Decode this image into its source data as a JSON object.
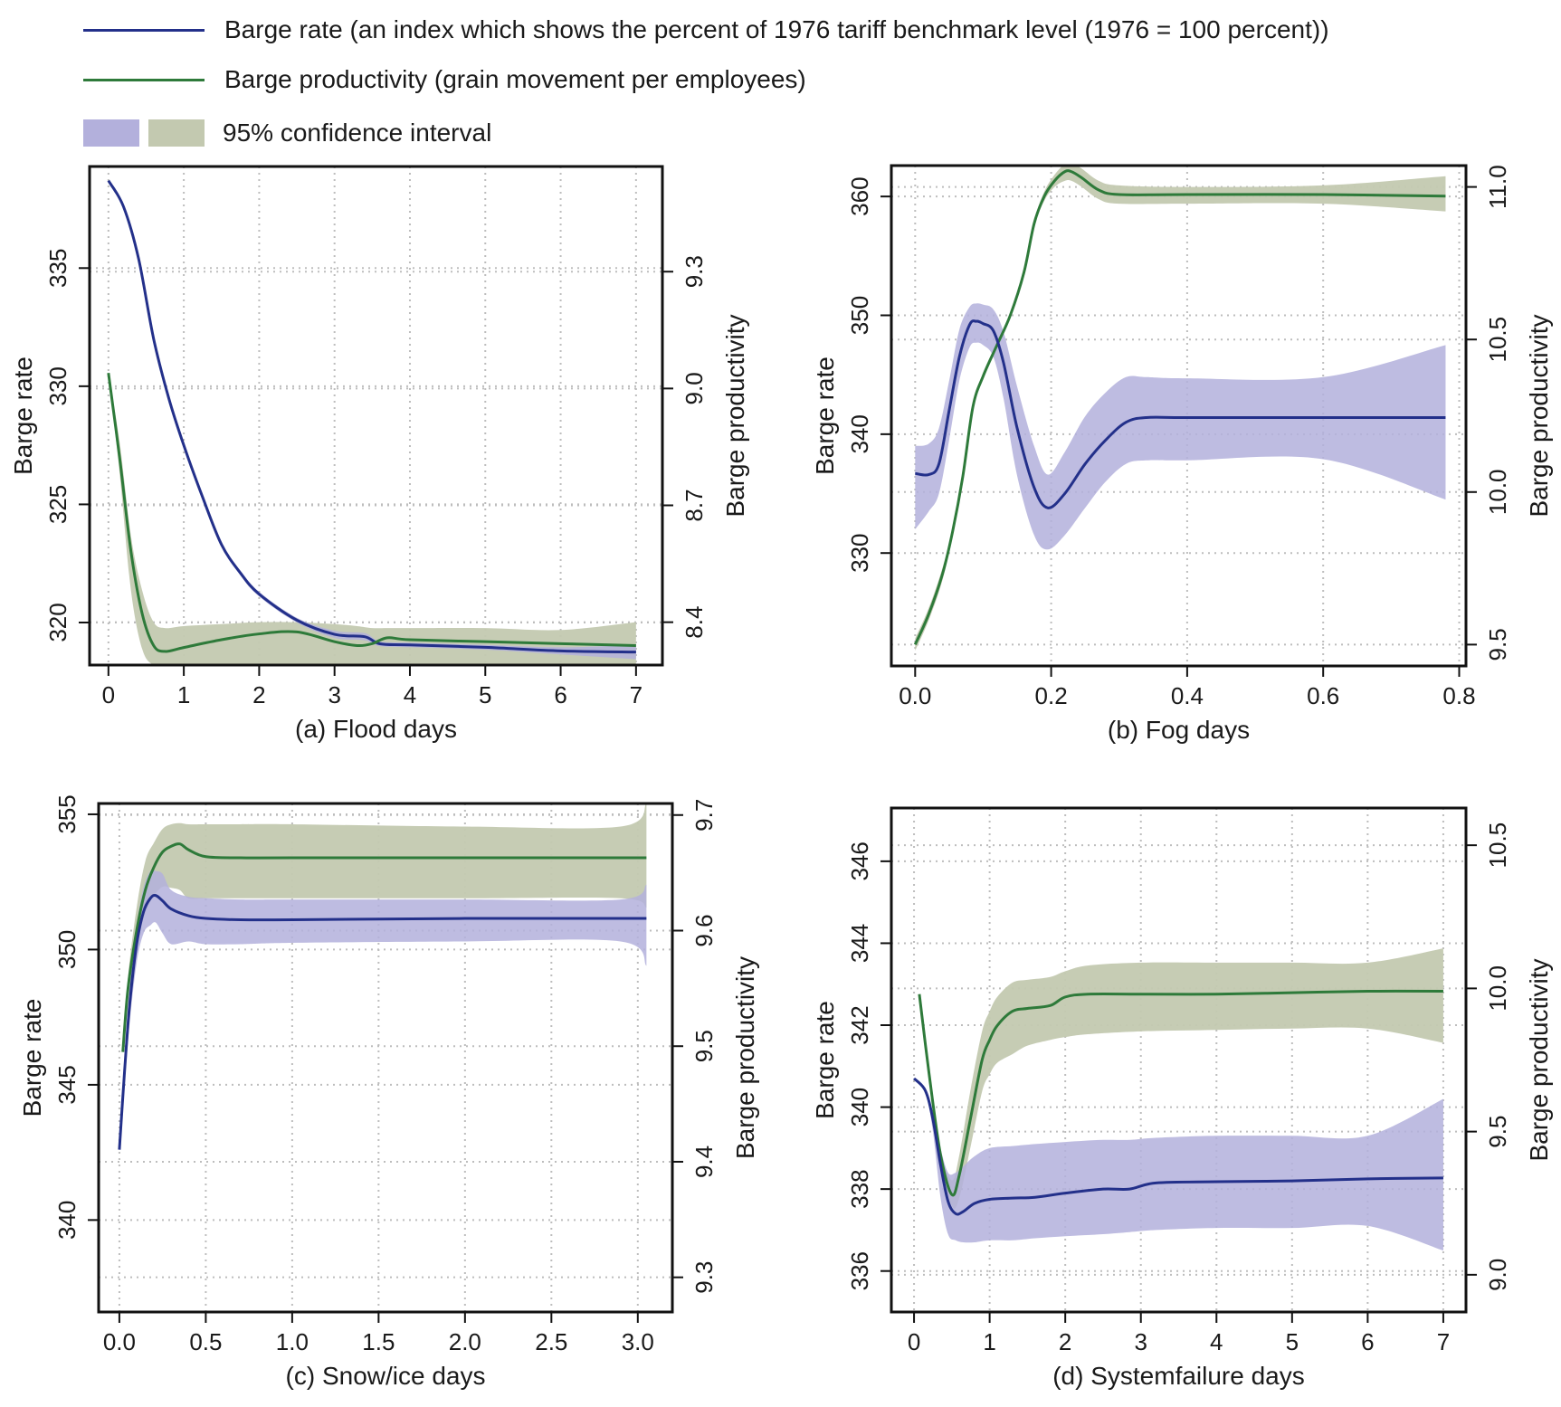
{
  "legend": {
    "barge_rate": {
      "label": "Barge rate (an index which shows the percent of 1976 tariff benchmark level (1976 = 100 percent))",
      "color": "#23308a"
    },
    "barge_productivity": {
      "label": "Barge productivity (grain movement per employees)",
      "color": "#2e7a3a"
    },
    "ci": {
      "label": "95% confidence interval",
      "rate_color": "#b3b0dc",
      "prod_color": "#c3c9b0"
    }
  },
  "chart_data": [
    {
      "id": "a",
      "type": "line",
      "title": "",
      "xlabel": "(a) Flood days",
      "ylabel_left": "Barge rate",
      "ylabel_right": "Barge productivity",
      "xlim": [
        -0.25,
        7.35
      ],
      "xticks": [
        0,
        1,
        2,
        3,
        4,
        5,
        6,
        7
      ],
      "xtick_labels": [
        "0",
        "1",
        "2",
        "3",
        "4",
        "5",
        "6",
        "7"
      ],
      "ylim_left": [
        318.2,
        339.3
      ],
      "yticks_left": [
        320,
        325,
        330,
        335
      ],
      "ytick_labels_left": [
        "320",
        "325",
        "330",
        "335"
      ],
      "ylim_right": [
        8.29,
        9.57
      ],
      "yticks_right": [
        8.4,
        8.7,
        9.0,
        9.3
      ],
      "ytick_labels_right": [
        "8.4",
        "8.7",
        "9.0",
        "9.3"
      ],
      "grid": true,
      "series": [
        {
          "name": "Barge rate",
          "axis": "left",
          "x": [
            0,
            0.2,
            0.4,
            0.6,
            0.8,
            1.0,
            1.25,
            1.5,
            1.75,
            2.0,
            2.5,
            3.0,
            3.4,
            3.6,
            4,
            5,
            6,
            7
          ],
          "y": [
            338.7,
            337.6,
            335.4,
            332.0,
            329.5,
            327.5,
            325.3,
            323.3,
            322.1,
            321.2,
            320.1,
            319.5,
            319.4,
            319.1,
            319.05,
            318.95,
            318.8,
            318.75
          ],
          "lower": [
            338.7,
            337.6,
            335.4,
            332.0,
            329.5,
            327.5,
            325.3,
            323.3,
            322.0,
            321.1,
            320.0,
            319.35,
            319.25,
            319.0,
            318.95,
            318.85,
            318.65,
            318.45
          ],
          "upper": [
            338.7,
            337.6,
            335.4,
            332.0,
            329.5,
            327.5,
            325.3,
            323.3,
            322.2,
            321.3,
            320.2,
            319.65,
            319.55,
            319.2,
            319.15,
            319.05,
            318.95,
            319.05
          ]
        },
        {
          "name": "Barge productivity",
          "axis": "right",
          "x": [
            0,
            0.15,
            0.3,
            0.45,
            0.6,
            0.75,
            1.0,
            1.5,
            2.0,
            2.5,
            3.0,
            3.3,
            3.5,
            3.7,
            4,
            5,
            6,
            7
          ],
          "y": [
            9.04,
            8.82,
            8.58,
            8.42,
            8.34,
            8.325,
            8.335,
            8.355,
            8.37,
            8.375,
            8.35,
            8.34,
            8.345,
            8.36,
            8.355,
            8.35,
            8.345,
            8.34
          ],
          "lower": [
            9.04,
            8.78,
            8.48,
            8.33,
            8.29,
            8.29,
            8.29,
            8.29,
            8.29,
            8.29,
            8.29,
            8.29,
            8.29,
            8.29,
            8.29,
            8.29,
            8.29,
            8.29
          ],
          "upper": [
            9.04,
            8.86,
            8.62,
            8.48,
            8.4,
            8.385,
            8.39,
            8.395,
            8.4,
            8.4,
            8.395,
            8.39,
            8.385,
            8.385,
            8.385,
            8.385,
            8.38,
            8.4
          ]
        }
      ]
    },
    {
      "id": "b",
      "type": "line",
      "title": "",
      "xlabel": "(b) Fog days",
      "ylabel_left": "Barge rate",
      "ylabel_right": "Barge productivity",
      "xlim": [
        -0.035,
        0.81
      ],
      "xticks": [
        0.0,
        0.2,
        0.4,
        0.6,
        0.8
      ],
      "xtick_labels": [
        "0.0",
        "0.2",
        "0.4",
        "0.6",
        "0.8"
      ],
      "ylim_left": [
        320.5,
        362.6
      ],
      "yticks_left": [
        330,
        340,
        350,
        360
      ],
      "ytick_labels_left": [
        "330",
        "340",
        "350",
        "360"
      ],
      "ylim_right": [
        9.43,
        11.07
      ],
      "yticks_right": [
        9.5,
        10.0,
        10.5,
        11.0
      ],
      "ytick_labels_right": [
        "9.5",
        "10.0",
        "10.5",
        "11.0"
      ],
      "grid": true,
      "series": [
        {
          "name": "Barge rate",
          "axis": "left",
          "x": [
            0,
            0.02,
            0.035,
            0.05,
            0.065,
            0.08,
            0.09,
            0.1,
            0.115,
            0.13,
            0.15,
            0.175,
            0.195,
            0.22,
            0.25,
            0.28,
            0.31,
            0.34,
            0.4,
            0.6,
            0.78
          ],
          "y": [
            336.7,
            336.6,
            337.5,
            342.0,
            346.5,
            349.2,
            349.5,
            349.3,
            348.7,
            346.0,
            340.5,
            335.5,
            333.8,
            335.0,
            337.5,
            339.5,
            341.0,
            341.4,
            341.4,
            341.4,
            341.4
          ],
          "lower": [
            332.0,
            333.5,
            335.0,
            339.5,
            344.5,
            347.3,
            347.7,
            347.5,
            346.5,
            343.0,
            336.5,
            331.5,
            330.3,
            331.5,
            333.8,
            336.0,
            337.5,
            337.8,
            337.8,
            337.9,
            334.5
          ],
          "upper": [
            339.0,
            339.2,
            340.5,
            344.5,
            348.8,
            350.7,
            351.0,
            350.9,
            350.5,
            348.6,
            344.0,
            339.0,
            336.6,
            338.5,
            341.5,
            343.5,
            344.8,
            344.8,
            344.7,
            344.8,
            347.5
          ]
        },
        {
          "name": "Barge productivity",
          "axis": "right",
          "x": [
            0,
            0.02,
            0.04,
            0.055,
            0.07,
            0.085,
            0.1,
            0.12,
            0.14,
            0.16,
            0.175,
            0.19,
            0.205,
            0.22,
            0.23,
            0.245,
            0.27,
            0.3,
            0.4,
            0.6,
            0.78
          ],
          "y": [
            9.5,
            9.6,
            9.73,
            9.87,
            10.05,
            10.28,
            10.38,
            10.48,
            10.58,
            10.72,
            10.88,
            10.97,
            11.02,
            11.05,
            11.05,
            11.03,
            10.99,
            10.975,
            10.975,
            10.975,
            10.97
          ],
          "lower": [
            9.48,
            9.58,
            9.71,
            9.86,
            10.04,
            10.27,
            10.37,
            10.47,
            10.57,
            10.71,
            10.87,
            10.955,
            11.0,
            11.02,
            11.02,
            11.0,
            10.96,
            10.945,
            10.945,
            10.945,
            10.92
          ],
          "upper": [
            9.52,
            9.62,
            9.75,
            9.88,
            10.06,
            10.29,
            10.39,
            10.49,
            10.59,
            10.73,
            10.89,
            10.985,
            11.04,
            11.075,
            11.08,
            11.06,
            11.02,
            11.005,
            11.0,
            11.005,
            11.035
          ]
        }
      ]
    },
    {
      "id": "c",
      "type": "line",
      "title": "",
      "xlabel": "(c) Snow/ice days",
      "ylabel_left": "Barge rate",
      "ylabel_right": "Barge productivity",
      "xlim": [
        -0.12,
        3.2
      ],
      "xticks": [
        0.0,
        0.5,
        1.0,
        1.5,
        2.0,
        2.5,
        3.0
      ],
      "xtick_labels": [
        "0.0",
        "0.5",
        "1.0",
        "1.5",
        "2.0",
        "2.5",
        "3.0"
      ],
      "ylim_left": [
        336.6,
        355.4
      ],
      "yticks_left": [
        340,
        345,
        350,
        355
      ],
      "ytick_labels_left": [
        "340",
        "345",
        "350",
        "355"
      ],
      "ylim_right": [
        9.27,
        9.71
      ],
      "yticks_right": [
        9.3,
        9.4,
        9.5,
        9.6,
        9.7
      ],
      "ytick_labels_right": [
        "9.3",
        "9.4",
        "9.5",
        "9.6",
        "9.7"
      ],
      "grid": true,
      "series": [
        {
          "name": "Barge rate",
          "axis": "left",
          "x": [
            0,
            0.03,
            0.06,
            0.1,
            0.14,
            0.18,
            0.21,
            0.25,
            0.3,
            0.4,
            0.5,
            0.7,
            1.0,
            2.0,
            2.9,
            3.05
          ],
          "y": [
            342.6,
            345.5,
            348.0,
            350.2,
            351.4,
            351.9,
            352.0,
            351.8,
            351.5,
            351.25,
            351.15,
            351.1,
            351.1,
            351.15,
            351.15,
            351.15
          ],
          "lower": [
            342.6,
            345.0,
            347.3,
            349.5,
            350.6,
            350.9,
            351.0,
            350.6,
            350.2,
            350.3,
            350.2,
            350.2,
            350.25,
            350.3,
            350.3,
            349.4
          ],
          "upper": [
            342.6,
            346.0,
            348.7,
            350.9,
            352.3,
            352.9,
            352.9,
            352.8,
            352.2,
            351.95,
            351.9,
            351.85,
            351.85,
            351.85,
            351.85,
            352.4
          ]
        },
        {
          "name": "Barge productivity",
          "axis": "right",
          "x": [
            0.02,
            0.05,
            0.1,
            0.15,
            0.2,
            0.25,
            0.3,
            0.35,
            0.4,
            0.5,
            0.7,
            1.0,
            2.0,
            2.9,
            3.05
          ],
          "y": [
            9.495,
            9.55,
            9.6,
            9.635,
            9.655,
            9.668,
            9.673,
            9.675,
            9.67,
            9.664,
            9.663,
            9.663,
            9.663,
            9.663,
            9.663
          ],
          "lower": [
            9.495,
            9.54,
            9.585,
            9.615,
            9.63,
            9.638,
            9.637,
            9.635,
            9.628,
            9.628,
            9.628,
            9.628,
            9.628,
            9.628,
            9.62
          ],
          "upper": [
            9.495,
            9.56,
            9.62,
            9.66,
            9.676,
            9.688,
            9.692,
            9.693,
            9.692,
            9.692,
            9.692,
            9.692,
            9.69,
            9.69,
            9.71
          ]
        }
      ]
    },
    {
      "id": "d",
      "type": "line",
      "title": "",
      "xlabel": "(d) Systemfailure days",
      "ylabel_left": "Barge rate",
      "ylabel_right": "Barge productivity",
      "xlim": [
        -0.3,
        7.3
      ],
      "xticks": [
        0,
        1,
        2,
        3,
        4,
        5,
        6,
        7
      ],
      "xtick_labels": [
        "0",
        "1",
        "2",
        "3",
        "4",
        "5",
        "6",
        "7"
      ],
      "ylim_left": [
        335.0,
        347.3
      ],
      "yticks_left": [
        336,
        338,
        340,
        342,
        344,
        346
      ],
      "ytick_labels_left": [
        "336",
        "338",
        "340",
        "342",
        "344",
        "346"
      ],
      "ylim_right": [
        8.87,
        10.63
      ],
      "yticks_right": [
        9.0,
        9.5,
        10.0,
        10.5
      ],
      "ytick_labels_right": [
        "9.0",
        "9.5",
        "10.0",
        "10.5"
      ],
      "grid": true,
      "series": [
        {
          "name": "Barge rate",
          "axis": "left",
          "x": [
            0,
            0.15,
            0.25,
            0.35,
            0.45,
            0.55,
            0.65,
            0.8,
            1.0,
            1.3,
            1.6,
            2.0,
            2.5,
            2.85,
            3.2,
            4,
            5,
            6,
            7
          ],
          "y": [
            340.7,
            340.4,
            339.7,
            338.6,
            337.7,
            337.4,
            337.45,
            337.65,
            337.75,
            337.78,
            337.8,
            337.9,
            338.0,
            338.0,
            338.15,
            338.18,
            338.2,
            338.25,
            338.27
          ],
          "lower": [
            340.7,
            340.4,
            339.4,
            337.8,
            336.9,
            336.75,
            336.7,
            336.7,
            336.75,
            336.75,
            336.8,
            336.85,
            336.9,
            336.95,
            337.0,
            337.05,
            337.05,
            337.1,
            336.5
          ],
          "upper": [
            340.7,
            340.4,
            339.9,
            339.0,
            338.4,
            338.4,
            338.55,
            338.8,
            339.0,
            339.05,
            339.1,
            339.15,
            339.2,
            339.2,
            339.25,
            339.3,
            339.3,
            339.3,
            340.2
          ]
        },
        {
          "name": "Barge productivity",
          "axis": "right",
          "x": [
            0.07,
            0.2,
            0.35,
            0.5,
            0.6,
            0.75,
            0.9,
            1.0,
            1.1,
            1.3,
            1.5,
            1.8,
            2.0,
            2.3,
            3.0,
            4,
            5,
            6,
            7
          ],
          "y": [
            9.98,
            9.7,
            9.42,
            9.28,
            9.35,
            9.55,
            9.75,
            9.82,
            9.87,
            9.92,
            9.93,
            9.94,
            9.97,
            9.98,
            9.98,
            9.98,
            9.985,
            9.99,
            9.99
          ],
          "lower": [
            9.98,
            9.7,
            9.4,
            9.24,
            9.27,
            9.45,
            9.64,
            9.7,
            9.74,
            9.77,
            9.8,
            9.82,
            9.83,
            9.84,
            9.85,
            9.855,
            9.86,
            9.86,
            9.81
          ],
          "upper": [
            9.98,
            9.7,
            9.44,
            9.33,
            9.42,
            9.65,
            9.85,
            9.92,
            9.97,
            10.02,
            10.03,
            10.04,
            10.06,
            10.08,
            10.09,
            10.09,
            10.09,
            10.09,
            10.14
          ]
        }
      ]
    }
  ]
}
